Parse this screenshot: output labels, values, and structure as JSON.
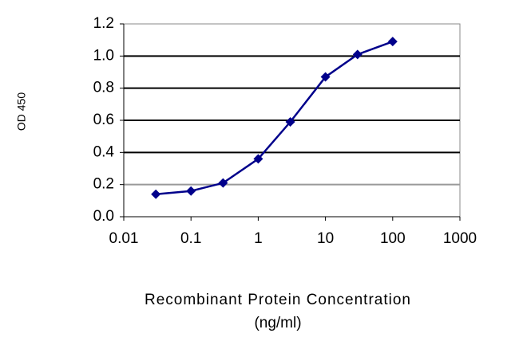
{
  "chart_data": {
    "type": "line",
    "y_label": "OD 450",
    "x_label": [
      "Recombinant Protein Concentration",
      "(ng/ml)"
    ],
    "x": [
      0.03,
      0.1,
      0.3,
      1,
      3,
      10,
      30,
      100
    ],
    "series": [
      {
        "name": null,
        "color": "#00008b",
        "values": [
          0.14,
          0.16,
          0.21,
          0.36,
          0.59,
          0.87,
          1.01,
          1.09
        ]
      }
    ],
    "xlim": [
      0.01,
      1000
    ],
    "xscale": "log",
    "xticks": [
      0.01,
      0.1,
      1,
      10,
      100,
      1000
    ],
    "ylim": [
      0,
      1.2
    ],
    "yticks": [
      {
        "value": 0,
        "label": "0.0"
      },
      0.2,
      0.4,
      0.6,
      0.8,
      {
        "value": 1,
        "label": "1.0"
      },
      1.2
    ],
    "grid": true
  }
}
